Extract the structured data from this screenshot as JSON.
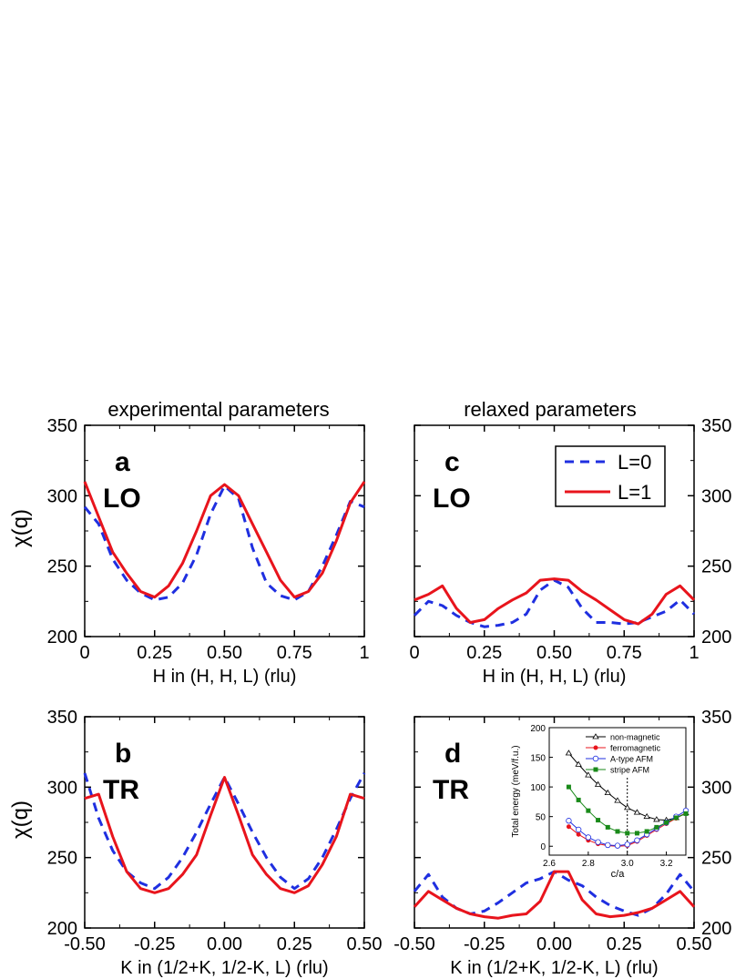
{
  "titles": {
    "left": "experimental parameters",
    "right": "relaxed parameters"
  },
  "ylabel": "χ(q)",
  "legend": [
    {
      "label": "L=0",
      "color": "#1f2fe0",
      "dash": true
    },
    {
      "label": "L=1",
      "color": "#e8141c",
      "dash": false
    }
  ],
  "colors": {
    "l0": "#1f2fe0",
    "l1": "#e8141c"
  },
  "chart_data": [
    {
      "id": "a",
      "type": "line",
      "panel_letter": "a",
      "mode": "LO",
      "xlabel": "H in  (H, H, L) (rlu)",
      "xlim": [
        0,
        1
      ],
      "ylim": [
        200,
        350
      ],
      "xticks": [
        "0",
        "0.25",
        "0.50",
        "0.75",
        "1"
      ],
      "yticks": [
        "200",
        "250",
        "300",
        "350"
      ],
      "x": [
        0,
        0.05,
        0.1,
        0.15,
        0.2,
        0.25,
        0.3,
        0.35,
        0.4,
        0.45,
        0.5,
        0.55,
        0.6,
        0.65,
        0.7,
        0.75,
        0.8,
        0.85,
        0.9,
        0.95,
        1.0
      ],
      "series": [
        {
          "name": "L=0",
          "values": [
            292,
            280,
            255,
            240,
            231,
            226,
            228,
            238,
            258,
            287,
            307,
            298,
            263,
            238,
            229,
            226,
            232,
            250,
            272,
            296,
            292
          ]
        },
        {
          "name": "L=1",
          "values": [
            310,
            285,
            260,
            245,
            232,
            228,
            236,
            252,
            275,
            300,
            308,
            300,
            280,
            260,
            240,
            228,
            232,
            245,
            268,
            295,
            310
          ]
        }
      ]
    },
    {
      "id": "c",
      "type": "line",
      "panel_letter": "c",
      "mode": "LO",
      "xlabel": "H in  (H, H, L) (rlu)",
      "xlim": [
        0,
        1
      ],
      "ylim": [
        200,
        350
      ],
      "xticks": [
        "0",
        "0.25",
        "0.50",
        "0.75",
        "1"
      ],
      "yticks": [
        "200",
        "250",
        "300",
        "350"
      ],
      "x": [
        0,
        0.05,
        0.1,
        0.15,
        0.2,
        0.25,
        0.3,
        0.35,
        0.4,
        0.45,
        0.5,
        0.55,
        0.6,
        0.65,
        0.7,
        0.75,
        0.8,
        0.85,
        0.9,
        0.95,
        1.0
      ],
      "series": [
        {
          "name": "L=0",
          "values": [
            215,
            225,
            222,
            215,
            210,
            207,
            208,
            210,
            216,
            233,
            240,
            235,
            220,
            210,
            210,
            209,
            210,
            214,
            218,
            226,
            216
          ]
        },
        {
          "name": "L=1",
          "values": [
            226,
            230,
            236,
            220,
            210,
            212,
            220,
            226,
            231,
            240,
            241,
            240,
            232,
            226,
            219,
            212,
            209,
            216,
            230,
            236,
            226
          ]
        }
      ]
    },
    {
      "id": "b",
      "type": "line",
      "panel_letter": "b",
      "mode": "TR",
      "xlabel": "K in (1/2+K, 1/2-K, L) (rlu)",
      "xlim": [
        -0.5,
        0.5
      ],
      "ylim": [
        200,
        350
      ],
      "xticks": [
        "-0.50",
        "-0.25",
        "0.00",
        "0.25",
        "0.50"
      ],
      "yticks": [
        "200",
        "250",
        "300",
        "350"
      ],
      "x": [
        -0.5,
        -0.45,
        -0.4,
        -0.35,
        -0.3,
        -0.25,
        -0.2,
        -0.15,
        -0.1,
        -0.05,
        0.0,
        0.05,
        0.1,
        0.15,
        0.2,
        0.25,
        0.3,
        0.35,
        0.4,
        0.45,
        0.5
      ],
      "series": [
        {
          "name": "L=0",
          "values": [
            310,
            278,
            255,
            240,
            232,
            228,
            236,
            250,
            268,
            288,
            307,
            288,
            268,
            250,
            236,
            228,
            235,
            250,
            270,
            292,
            310
          ]
        },
        {
          "name": "L=1",
          "values": [
            292,
            295,
            265,
            240,
            228,
            225,
            228,
            238,
            252,
            280,
            307,
            280,
            252,
            238,
            228,
            225,
            230,
            245,
            265,
            295,
            292
          ]
        }
      ]
    },
    {
      "id": "d",
      "type": "line",
      "panel_letter": "d",
      "mode": "TR",
      "xlabel": "K in (1/2+K, 1/2-K, L) (rlu)",
      "xlim": [
        -0.5,
        0.5
      ],
      "ylim": [
        200,
        350
      ],
      "xticks": [
        "-0.50",
        "-0.25",
        "0.00",
        "0.25",
        "0.50"
      ],
      "yticks": [
        "200",
        "250",
        "300",
        "350"
      ],
      "x": [
        -0.5,
        -0.45,
        -0.4,
        -0.35,
        -0.3,
        -0.25,
        -0.2,
        -0.15,
        -0.1,
        -0.05,
        0.0,
        0.05,
        0.1,
        0.15,
        0.2,
        0.25,
        0.3,
        0.35,
        0.4,
        0.45,
        0.5
      ],
      "series": [
        {
          "name": "L=0",
          "values": [
            226,
            238,
            222,
            214,
            210,
            212,
            218,
            225,
            232,
            235,
            240,
            234,
            230,
            222,
            216,
            212,
            209,
            214,
            224,
            238,
            226
          ]
        },
        {
          "name": "L=1",
          "values": [
            215,
            226,
            220,
            214,
            210,
            208,
            207,
            209,
            210,
            219,
            240,
            240,
            220,
            210,
            208,
            209,
            211,
            214,
            220,
            226,
            215
          ]
        }
      ]
    }
  ],
  "inset": {
    "type": "line",
    "xlabel": "c/a",
    "ylabel": "Total energy (meV/f.u.)",
    "xlim": [
      2.6,
      3.3
    ],
    "ylim": [
      -15,
      200
    ],
    "xticks": [
      "2.6",
      "2.8",
      "3.0",
      "3.2"
    ],
    "yticks": [
      "0",
      "50",
      "100",
      "150",
      "200"
    ],
    "vline": 3.0,
    "x": [
      2.7,
      2.75,
      2.8,
      2.85,
      2.9,
      2.95,
      3.0,
      3.05,
      3.1,
      3.15,
      3.2,
      3.25,
      3.3
    ],
    "series": [
      {
        "name": "non-magnetic",
        "color": "#000000",
        "marker": "triangle-open",
        "values": [
          157,
          138,
          120,
          104,
          90,
          77,
          65,
          57,
          50,
          45,
          44,
          48,
          56
        ]
      },
      {
        "name": "ferromagnetic",
        "color": "#e8141c",
        "marker": "circle-filled",
        "values": [
          33,
          20,
          10,
          4,
          1,
          0,
          1,
          8,
          18,
          28,
          38,
          47,
          56
        ]
      },
      {
        "name": "A-type AFM",
        "color": "#1f2fe0",
        "marker": "circle-open",
        "values": [
          43,
          28,
          15,
          7,
          2,
          1,
          3,
          10,
          20,
          30,
          40,
          50,
          60
        ]
      },
      {
        "name": "stripe AFM",
        "color": "#1a8a1a",
        "marker": "square-filled",
        "values": [
          100,
          78,
          60,
          44,
          32,
          25,
          22,
          22,
          25,
          32,
          40,
          48,
          55
        ]
      }
    ]
  }
}
